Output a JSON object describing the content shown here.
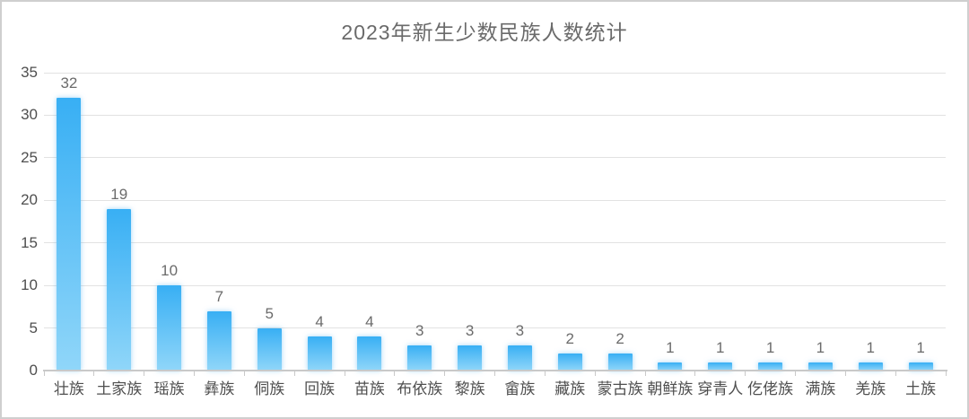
{
  "chart_data": {
    "type": "bar",
    "title": "2023年新生少数民族人数统计",
    "categories": [
      "壮族",
      "土家族",
      "瑶族",
      "彝族",
      "侗族",
      "回族",
      "苗族",
      "布依族",
      "黎族",
      "畲族",
      "藏族",
      "蒙古族",
      "朝鲜族",
      "穿青人",
      "仡佬族",
      "满族",
      "羌族",
      "土族"
    ],
    "values": [
      32,
      19,
      10,
      7,
      5,
      4,
      4,
      3,
      3,
      3,
      2,
      2,
      1,
      1,
      1,
      1,
      1,
      1
    ],
    "xlabel": "",
    "ylabel": "",
    "ylim": [
      0,
      35
    ],
    "yticks": [
      0,
      5,
      10,
      15,
      20,
      25,
      30,
      35
    ],
    "grid": true,
    "legend": null,
    "data_labels_shown": true,
    "colors": {
      "bar_gradient_top": "#38aff4",
      "bar_gradient_bottom": "#90d6f9",
      "grid_color": "#e2e2e2",
      "axis_color": "#c9c9c9",
      "title_color": "#6a6a6a",
      "tick_label_color": "#4f4f4f",
      "data_label_color": "#6b6b6b",
      "frame_border_color": "#cfcfcf",
      "background": "#ffffff"
    }
  }
}
